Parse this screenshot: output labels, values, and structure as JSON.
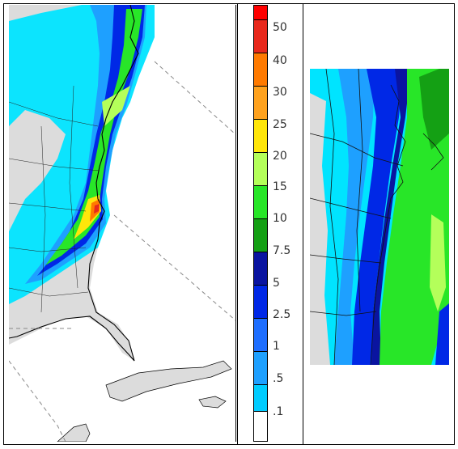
{
  "figure": {
    "legend": {
      "labels": [
        "50",
        "40",
        "30",
        "25",
        "20",
        "15",
        "10",
        "7.5",
        "5",
        "2.5",
        "1",
        ".5",
        ".1"
      ],
      "colors": [
        "#ff0000",
        "#e8281c",
        "#ff7a00",
        "#ffa21e",
        "#ffe60a",
        "#b4ff5a",
        "#28e628",
        "#14a014",
        "#0a14a0",
        "#0028e6",
        "#1e6eff",
        "#1ea0ff",
        "#00ccff",
        "#00f0ff",
        "#ffffff"
      ]
    },
    "colors": {
      "land": "#dcdcdc",
      "ocean": "#ffffff",
      "coast": "#000000",
      "dashed_grid": "#888888"
    }
  }
}
